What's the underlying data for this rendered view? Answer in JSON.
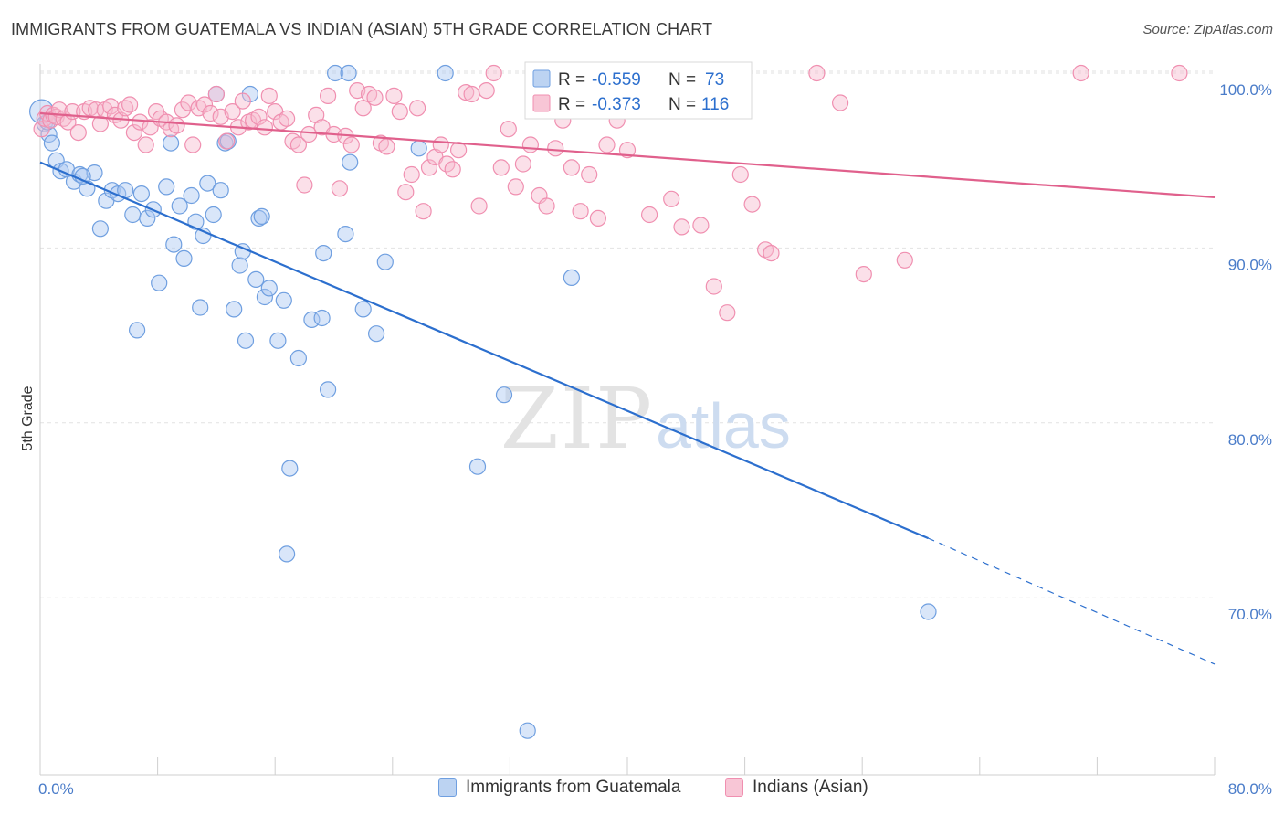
{
  "header": {
    "title": "IMMIGRANTS FROM GUATEMALA VS INDIAN (ASIAN) 5TH GRADE CORRELATION CHART",
    "source": "Source: ZipAtlas.com"
  },
  "watermark": {
    "zip": "ZIP",
    "atlas": "atlas"
  },
  "legend": {
    "r_label": "R =",
    "n_label": "N =",
    "entries": [
      {
        "r": "-0.559",
        "n": "73"
      },
      {
        "r": "-0.373",
        "n": "116"
      }
    ]
  },
  "bottom_legend": {
    "items": [
      "Immigrants from Guatemala",
      "Indians (Asian)"
    ]
  },
  "chart_data": {
    "type": "scatter",
    "title": "IMMIGRANTS FROM GUATEMALA VS INDIAN (ASIAN) 5TH GRADE CORRELATION CHART",
    "xlabel": "",
    "ylabel": "5th Grade",
    "xlim": [
      0,
      80
    ],
    "ylim": [
      61,
      101
    ],
    "x_tick_labels": [
      "0.0%",
      "80.0%"
    ],
    "y_ticks": [
      70,
      80,
      90,
      100
    ],
    "y_tick_labels": [
      "70.0%",
      "80.0%",
      "90.0%",
      "100.0%"
    ],
    "grid": true,
    "legend_position": "top-center",
    "colors": {
      "blue": "#6f9fe0",
      "blue_line": "#2c6fce",
      "pink": "#f08fb0",
      "pink_line": "#e0608c",
      "tick": "#4a7cc9"
    },
    "series": [
      {
        "name": "Immigrants from Guatemala",
        "color": "#6f9fe0",
        "r": -0.559,
        "n": 73,
        "trend": {
          "x0": 0,
          "y0": 94.9,
          "x1": 60.5,
          "y1": 73.4,
          "dash_to_x": 80,
          "dash_to_y": 66.2
        },
        "points": [
          [
            0.1,
            97.8
          ],
          [
            0.3,
            97.1
          ],
          [
            0.6,
            96.5
          ],
          [
            0.8,
            96.0
          ],
          [
            1.1,
            95.0
          ],
          [
            1.4,
            94.4
          ],
          [
            1.8,
            94.5
          ],
          [
            2.3,
            93.8
          ],
          [
            2.7,
            94.2
          ],
          [
            3.2,
            93.4
          ],
          [
            3.7,
            94.3
          ],
          [
            4.1,
            91.1
          ],
          [
            4.5,
            92.7
          ],
          [
            4.9,
            93.3
          ],
          [
            5.3,
            93.1
          ],
          [
            5.8,
            93.3
          ],
          [
            6.3,
            91.9
          ],
          [
            6.6,
            85.3
          ],
          [
            6.9,
            93.1
          ],
          [
            7.3,
            91.7
          ],
          [
            7.7,
            92.2
          ],
          [
            8.1,
            88.0
          ],
          [
            8.6,
            93.5
          ],
          [
            8.9,
            96.0
          ],
          [
            9.1,
            90.2
          ],
          [
            9.5,
            92.4
          ],
          [
            9.8,
            89.4
          ],
          [
            10.3,
            93.0
          ],
          [
            10.6,
            91.5
          ],
          [
            10.9,
            86.6
          ],
          [
            11.1,
            90.7
          ],
          [
            11.4,
            93.7
          ],
          [
            11.8,
            91.9
          ],
          [
            12.0,
            98.8
          ],
          [
            12.3,
            93.3
          ],
          [
            12.6,
            96.0
          ],
          [
            12.8,
            96.1
          ],
          [
            13.2,
            86.5
          ],
          [
            13.6,
            89.0
          ],
          [
            13.8,
            89.8
          ],
          [
            14.0,
            84.7
          ],
          [
            14.3,
            98.8
          ],
          [
            14.7,
            88.2
          ],
          [
            14.9,
            91.7
          ],
          [
            15.1,
            91.8
          ],
          [
            15.3,
            87.2
          ],
          [
            15.6,
            87.7
          ],
          [
            16.2,
            84.7
          ],
          [
            16.6,
            87.0
          ],
          [
            16.8,
            72.5
          ],
          [
            17.0,
            77.4
          ],
          [
            17.6,
            83.7
          ],
          [
            18.5,
            85.9
          ],
          [
            19.2,
            86.0
          ],
          [
            19.3,
            89.7
          ],
          [
            19.6,
            81.9
          ],
          [
            20.1,
            100.0
          ],
          [
            20.8,
            90.8
          ],
          [
            21.1,
            94.9
          ],
          [
            21.0,
            100.0
          ],
          [
            22.0,
            86.5
          ],
          [
            22.9,
            85.1
          ],
          [
            23.5,
            89.2
          ],
          [
            25.8,
            95.7
          ],
          [
            27.6,
            100.0
          ],
          [
            29.8,
            77.5
          ],
          [
            31.6,
            81.6
          ],
          [
            33.2,
            62.4
          ],
          [
            34.1,
            100.0
          ],
          [
            36.2,
            88.3
          ],
          [
            60.5,
            69.2
          ],
          [
            0.5,
            97.2
          ],
          [
            2.9,
            94.1
          ]
        ]
      },
      {
        "name": "Indians (Asian)",
        "color": "#f08fb0",
        "r": -0.373,
        "n": 116,
        "trend": {
          "x0": 0,
          "y0": 97.7,
          "x1": 80,
          "y1": 92.9
        },
        "points": [
          [
            0.1,
            96.8
          ],
          [
            0.3,
            97.4
          ],
          [
            0.5,
            97.7
          ],
          [
            0.7,
            97.3
          ],
          [
            0.9,
            97.6
          ],
          [
            1.1,
            97.5
          ],
          [
            1.3,
            97.9
          ],
          [
            1.6,
            97.4
          ],
          [
            1.9,
            97.2
          ],
          [
            2.2,
            97.8
          ],
          [
            2.6,
            96.6
          ],
          [
            3.0,
            97.8
          ],
          [
            3.4,
            98.0
          ],
          [
            3.8,
            97.9
          ],
          [
            4.1,
            97.1
          ],
          [
            4.4,
            97.9
          ],
          [
            4.8,
            98.1
          ],
          [
            5.1,
            97.6
          ],
          [
            5.5,
            97.3
          ],
          [
            5.8,
            98.0
          ],
          [
            6.1,
            98.2
          ],
          [
            6.4,
            96.6
          ],
          [
            6.8,
            97.2
          ],
          [
            7.2,
            95.9
          ],
          [
            7.5,
            96.9
          ],
          [
            7.9,
            97.8
          ],
          [
            8.2,
            97.4
          ],
          [
            8.6,
            97.2
          ],
          [
            8.9,
            96.8
          ],
          [
            9.3,
            97.0
          ],
          [
            9.7,
            97.9
          ],
          [
            10.1,
            98.3
          ],
          [
            10.4,
            95.9
          ],
          [
            10.8,
            98.0
          ],
          [
            11.2,
            98.2
          ],
          [
            11.6,
            97.7
          ],
          [
            12.0,
            98.8
          ],
          [
            12.3,
            97.5
          ],
          [
            12.7,
            96.1
          ],
          [
            13.1,
            97.8
          ],
          [
            13.5,
            96.9
          ],
          [
            13.8,
            98.4
          ],
          [
            14.2,
            97.2
          ],
          [
            14.5,
            97.3
          ],
          [
            14.9,
            97.5
          ],
          [
            15.3,
            96.9
          ],
          [
            15.6,
            98.7
          ],
          [
            16.0,
            97.8
          ],
          [
            16.4,
            97.2
          ],
          [
            16.8,
            97.4
          ],
          [
            17.2,
            96.1
          ],
          [
            17.6,
            95.9
          ],
          [
            18.0,
            93.6
          ],
          [
            18.3,
            96.5
          ],
          [
            18.8,
            97.6
          ],
          [
            19.2,
            96.9
          ],
          [
            19.6,
            98.7
          ],
          [
            20.0,
            96.5
          ],
          [
            20.4,
            93.4
          ],
          [
            20.8,
            96.4
          ],
          [
            21.2,
            95.9
          ],
          [
            21.6,
            99.0
          ],
          [
            22.0,
            98.0
          ],
          [
            22.4,
            98.8
          ],
          [
            22.8,
            98.6
          ],
          [
            23.2,
            96.0
          ],
          [
            23.6,
            95.8
          ],
          [
            24.1,
            98.7
          ],
          [
            24.5,
            97.8
          ],
          [
            24.9,
            93.2
          ],
          [
            25.3,
            94.2
          ],
          [
            25.7,
            98.0
          ],
          [
            26.1,
            92.1
          ],
          [
            26.5,
            94.6
          ],
          [
            26.9,
            95.2
          ],
          [
            27.3,
            95.9
          ],
          [
            27.7,
            94.8
          ],
          [
            28.1,
            94.5
          ],
          [
            28.5,
            95.6
          ],
          [
            29.0,
            98.9
          ],
          [
            29.4,
            98.8
          ],
          [
            29.9,
            92.4
          ],
          [
            30.4,
            99.0
          ],
          [
            30.9,
            100.0
          ],
          [
            31.4,
            94.6
          ],
          [
            31.9,
            96.8
          ],
          [
            32.4,
            93.5
          ],
          [
            32.9,
            94.8
          ],
          [
            33.4,
            95.9
          ],
          [
            34.0,
            93.0
          ],
          [
            34.5,
            92.4
          ],
          [
            35.1,
            95.7
          ],
          [
            35.6,
            97.3
          ],
          [
            36.2,
            94.6
          ],
          [
            36.8,
            92.1
          ],
          [
            37.4,
            94.2
          ],
          [
            38.0,
            91.7
          ],
          [
            38.6,
            95.9
          ],
          [
            39.3,
            97.3
          ],
          [
            40.0,
            95.6
          ],
          [
            41.5,
            91.9
          ],
          [
            43.0,
            92.8
          ],
          [
            43.7,
            91.2
          ],
          [
            45.0,
            91.3
          ],
          [
            45.9,
            87.8
          ],
          [
            46.8,
            86.3
          ],
          [
            47.7,
            94.2
          ],
          [
            48.5,
            92.5
          ],
          [
            49.4,
            89.9
          ],
          [
            49.8,
            89.7
          ],
          [
            52.9,
            100.0
          ],
          [
            54.5,
            98.3
          ],
          [
            56.1,
            88.5
          ],
          [
            58.9,
            89.3
          ],
          [
            70.9,
            100.0
          ],
          [
            77.6,
            100.0
          ]
        ]
      }
    ]
  }
}
